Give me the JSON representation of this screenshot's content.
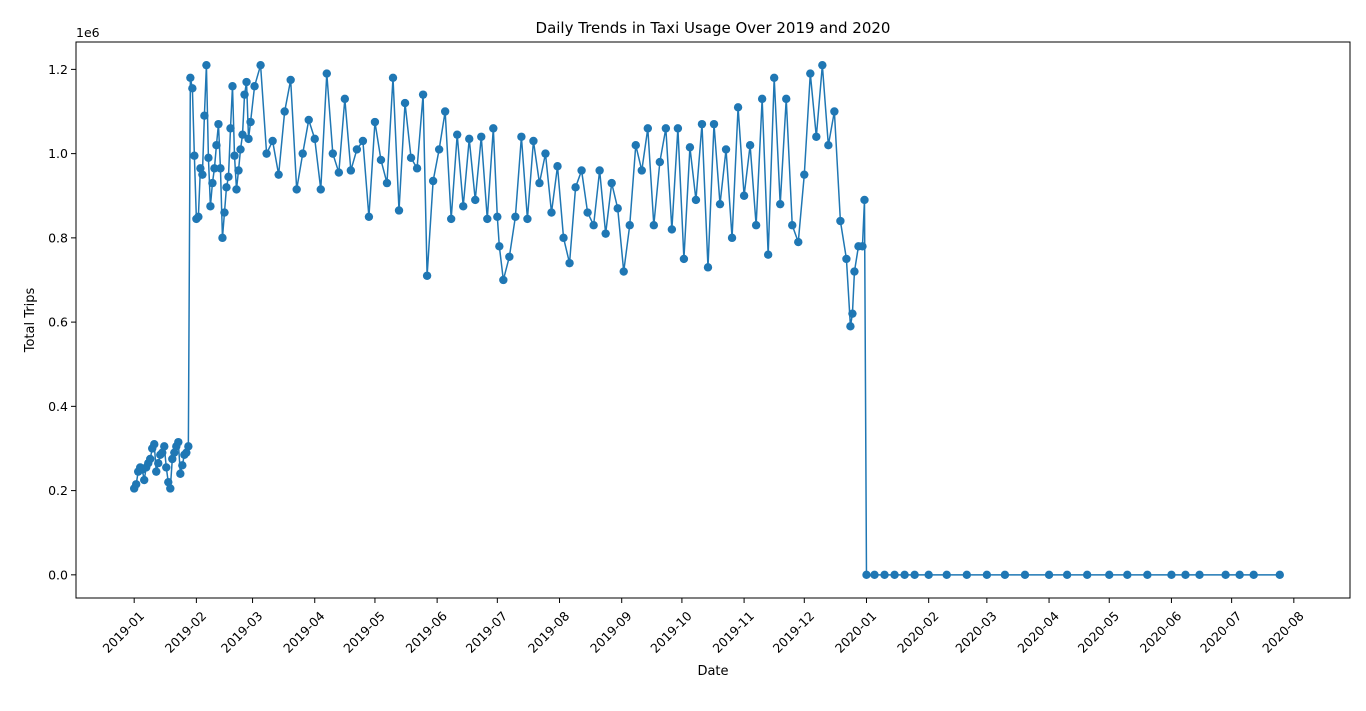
{
  "chart_data": {
    "type": "line",
    "title": "Daily Trends in Taxi Usage Over 2019 and 2020",
    "xlabel": "Date",
    "ylabel": "Total Trips",
    "y_offset_label": "1e6",
    "y_unit_multiplier": 1000000,
    "ylim": [
      -55000,
      1265000
    ],
    "xlim": [
      "2018-12-03",
      "2020-08-29"
    ],
    "grid": false,
    "legend": "none",
    "marker": "circle",
    "color": "#1f77b4",
    "x_ticks": [
      "2019-01-01",
      "2019-02-01",
      "2019-03-01",
      "2019-04-01",
      "2019-05-01",
      "2019-06-01",
      "2019-07-01",
      "2019-08-01",
      "2019-09-01",
      "2019-10-01",
      "2019-11-01",
      "2019-12-01",
      "2020-01-01",
      "2020-02-01",
      "2020-03-01",
      "2020-04-01",
      "2020-05-01",
      "2020-06-01",
      "2020-07-01",
      "2020-08-01"
    ],
    "x_tick_labels": [
      "2019-01",
      "2019-02",
      "2019-03",
      "2019-04",
      "2019-05",
      "2019-06",
      "2019-07",
      "2019-08",
      "2019-09",
      "2019-10",
      "2019-11",
      "2019-12",
      "2020-01",
      "2020-02",
      "2020-03",
      "2020-04",
      "2020-05",
      "2020-06",
      "2020-07",
      "2020-08"
    ],
    "y_ticks": [
      0,
      200000,
      400000,
      600000,
      800000,
      1000000,
      1200000
    ],
    "y_tick_labels": [
      "0.0",
      "0.2",
      "0.4",
      "0.6",
      "0.8",
      "1.0",
      "1.2"
    ],
    "series": [
      {
        "x": [
          "2019-01-01",
          "2019-01-02",
          "2019-01-03",
          "2019-01-04",
          "2019-01-05",
          "2019-01-06",
          "2019-01-07",
          "2019-01-08",
          "2019-01-09",
          "2019-01-10",
          "2019-01-11",
          "2019-01-12",
          "2019-01-13",
          "2019-01-14",
          "2019-01-15",
          "2019-01-16",
          "2019-01-17",
          "2019-01-18",
          "2019-01-19",
          "2019-01-20",
          "2019-01-21",
          "2019-01-22",
          "2019-01-23",
          "2019-01-24",
          "2019-01-25",
          "2019-01-26",
          "2019-01-27",
          "2019-01-28",
          "2019-01-29",
          "2019-01-30",
          "2019-01-31",
          "2019-02-01",
          "2019-02-02",
          "2019-02-03",
          "2019-02-04",
          "2019-02-05",
          "2019-02-06",
          "2019-02-07",
          "2019-02-08",
          "2019-02-09",
          "2019-02-10",
          "2019-02-11",
          "2019-02-12",
          "2019-02-13",
          "2019-02-14",
          "2019-02-15",
          "2019-02-16",
          "2019-02-17",
          "2019-02-18",
          "2019-02-19",
          "2019-02-20",
          "2019-02-21",
          "2019-02-22",
          "2019-02-23",
          "2019-02-24",
          "2019-02-25",
          "2019-02-26",
          "2019-02-27",
          "2019-02-28",
          "2019-03-02",
          "2019-03-05",
          "2019-03-08",
          "2019-03-11",
          "2019-03-14",
          "2019-03-17",
          "2019-03-20",
          "2019-03-23",
          "2019-03-26",
          "2019-03-29",
          "2019-04-01",
          "2019-04-04",
          "2019-04-07",
          "2019-04-10",
          "2019-04-13",
          "2019-04-16",
          "2019-04-19",
          "2019-04-22",
          "2019-04-25",
          "2019-04-28",
          "2019-05-01",
          "2019-05-04",
          "2019-05-07",
          "2019-05-10",
          "2019-05-13",
          "2019-05-16",
          "2019-05-19",
          "2019-05-22",
          "2019-05-25",
          "2019-05-27",
          "2019-05-30",
          "2019-06-02",
          "2019-06-05",
          "2019-06-08",
          "2019-06-11",
          "2019-06-14",
          "2019-06-17",
          "2019-06-20",
          "2019-06-23",
          "2019-06-26",
          "2019-06-29",
          "2019-07-01",
          "2019-07-02",
          "2019-07-04",
          "2019-07-07",
          "2019-07-10",
          "2019-07-13",
          "2019-07-16",
          "2019-07-19",
          "2019-07-22",
          "2019-07-25",
          "2019-07-28",
          "2019-07-31",
          "2019-08-03",
          "2019-08-06",
          "2019-08-09",
          "2019-08-12",
          "2019-08-15",
          "2019-08-18",
          "2019-08-21",
          "2019-08-24",
          "2019-08-27",
          "2019-08-30",
          "2019-09-02",
          "2019-09-05",
          "2019-09-08",
          "2019-09-11",
          "2019-09-14",
          "2019-09-17",
          "2019-09-20",
          "2019-09-23",
          "2019-09-26",
          "2019-09-29",
          "2019-10-02",
          "2019-10-05",
          "2019-10-08",
          "2019-10-11",
          "2019-10-14",
          "2019-10-17",
          "2019-10-20",
          "2019-10-23",
          "2019-10-26",
          "2019-10-29",
          "2019-11-01",
          "2019-11-04",
          "2019-11-07",
          "2019-11-10",
          "2019-11-13",
          "2019-11-16",
          "2019-11-19",
          "2019-11-22",
          "2019-11-25",
          "2019-11-28",
          "2019-12-01",
          "2019-12-04",
          "2019-12-07",
          "2019-12-10",
          "2019-12-13",
          "2019-12-16",
          "2019-12-19",
          "2019-12-22",
          "2019-12-24",
          "2019-12-25",
          "2019-12-26",
          "2019-12-28",
          "2019-12-30",
          "2019-12-31",
          "2020-01-01",
          "2020-01-05",
          "2020-01-10",
          "2020-01-15",
          "2020-01-20",
          "2020-01-25",
          "2020-02-01",
          "2020-02-10",
          "2020-02-20",
          "2020-03-01",
          "2020-03-10",
          "2020-03-20",
          "2020-04-01",
          "2020-04-10",
          "2020-04-20",
          "2020-05-01",
          "2020-05-10",
          "2020-05-20",
          "2020-06-01",
          "2020-06-08",
          "2020-06-15",
          "2020-06-28",
          "2020-07-05",
          "2020-07-12",
          "2020-07-25"
        ],
        "y": [
          205000,
          215000,
          245000,
          255000,
          250000,
          225000,
          255000,
          265000,
          275000,
          300000,
          310000,
          245000,
          265000,
          285000,
          290000,
          305000,
          255000,
          220000,
          205000,
          275000,
          290000,
          305000,
          315000,
          240000,
          260000,
          285000,
          290000,
          305000,
          1180000,
          1155000,
          995000,
          845000,
          850000,
          965000,
          950000,
          1090000,
          1210000,
          990000,
          875000,
          930000,
          965000,
          1020000,
          1070000,
          965000,
          800000,
          860000,
          920000,
          945000,
          1060000,
          1160000,
          995000,
          915000,
          960000,
          1010000,
          1045000,
          1140000,
          1170000,
          1035000,
          1075000,
          1160000,
          1210000,
          1000000,
          1030000,
          950000,
          1100000,
          1175000,
          915000,
          1000000,
          1080000,
          1035000,
          915000,
          1190000,
          1000000,
          955000,
          1130000,
          960000,
          1010000,
          1030000,
          850000,
          1075000,
          985000,
          930000,
          1180000,
          865000,
          1120000,
          990000,
          965000,
          1140000,
          710000,
          935000,
          1010000,
          1100000,
          845000,
          1045000,
          875000,
          1035000,
          890000,
          1040000,
          845000,
          1060000,
          850000,
          780000,
          700000,
          755000,
          850000,
          1040000,
          845000,
          1030000,
          930000,
          1000000,
          860000,
          970000,
          800000,
          740000,
          920000,
          960000,
          860000,
          830000,
          960000,
          810000,
          930000,
          870000,
          720000,
          830000,
          1020000,
          960000,
          1060000,
          830000,
          980000,
          1060000,
          820000,
          1060000,
          750000,
          1015000,
          890000,
          1070000,
          730000,
          1070000,
          880000,
          1010000,
          800000,
          1110000,
          900000,
          1020000,
          830000,
          1130000,
          760000,
          1180000,
          880000,
          1130000,
          830000,
          790000,
          950000,
          1190000,
          1040000,
          1210000,
          1020000,
          1100000,
          840000,
          750000,
          590000,
          620000,
          720000,
          780000,
          780000,
          890000,
          0,
          0,
          0,
          0,
          0,
          0,
          0,
          0,
          0,
          0,
          0,
          0,
          0,
          0,
          0,
          0,
          0,
          0,
          0,
          0,
          0,
          0,
          0,
          0,
          0
        ]
      }
    ]
  }
}
